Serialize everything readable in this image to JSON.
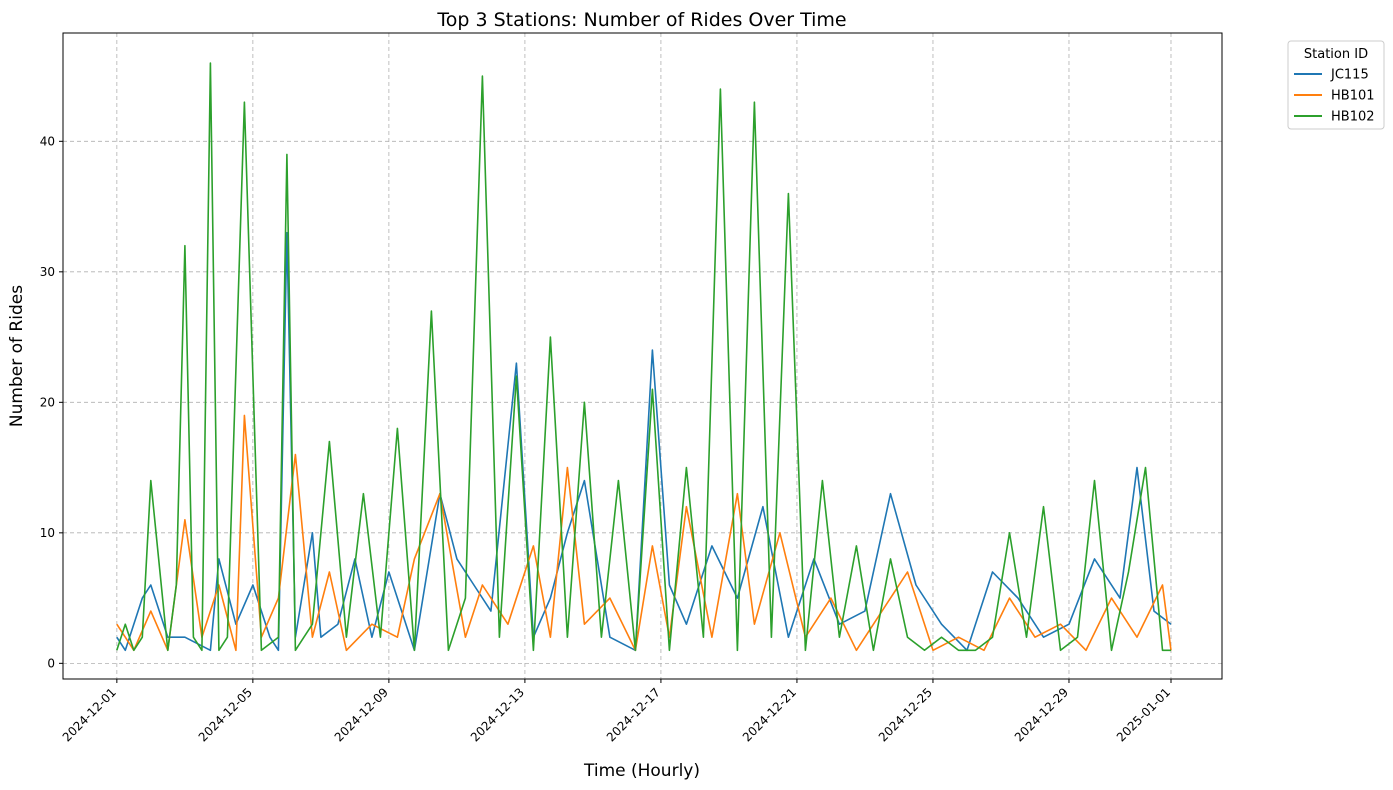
{
  "chart_data": {
    "type": "line",
    "title": "Top 3 Stations: Number of Rides Over Time",
    "xlabel": "Time (Hourly)",
    "ylabel": "Number of Rides",
    "xlim": [
      "2024-11-29 10:00",
      "2025-01-02 12:00"
    ],
    "ylim": [
      -1.2,
      48.3
    ],
    "x_ticks": [
      "2024-12-01",
      "2024-12-05",
      "2024-12-09",
      "2024-12-13",
      "2024-12-17",
      "2024-12-21",
      "2024-12-25",
      "2024-12-29",
      "2025-01-01"
    ],
    "y_ticks": [
      0,
      10,
      20,
      30,
      40
    ],
    "grid": true,
    "legend_title": "Station ID",
    "legend_location": "outside top-right",
    "series": [
      {
        "name": "JC115",
        "color": "#1f77b4",
        "x": [
          "2024-12-01 00:00",
          "2024-12-01 06:00",
          "2024-12-01 12:00",
          "2024-12-01 18:00",
          "2024-12-02 00:00",
          "2024-12-02 12:00",
          "2024-12-03 00:00",
          "2024-12-03 18:00",
          "2024-12-04 00:00",
          "2024-12-04 12:00",
          "2024-12-05 00:00",
          "2024-12-05 12:00",
          "2024-12-05 18:00",
          "2024-12-06 00:00",
          "2024-12-06 06:00",
          "2024-12-06 18:00",
          "2024-12-07 00:00",
          "2024-12-07 12:00",
          "2024-12-08 00:00",
          "2024-12-08 12:00",
          "2024-12-09 00:00",
          "2024-12-09 18:00",
          "2024-12-10 12:00",
          "2024-12-11 00:00",
          "2024-12-11 12:00",
          "2024-12-12 00:00",
          "2024-12-12 18:00",
          "2024-12-13 06:00",
          "2024-12-13 18:00",
          "2024-12-14 06:00",
          "2024-12-14 18:00",
          "2024-12-15 12:00",
          "2024-12-16 06:00",
          "2024-12-16 18:00",
          "2024-12-17 06:00",
          "2024-12-17 18:00",
          "2024-12-18 12:00",
          "2024-12-19 06:00",
          "2024-12-20 00:00",
          "2024-12-20 18:00",
          "2024-12-21 12:00",
          "2024-12-22 06:00",
          "2024-12-23 00:00",
          "2024-12-23 18:00",
          "2024-12-24 12:00",
          "2024-12-25 06:00",
          "2024-12-26 00:00",
          "2024-12-26 18:00",
          "2024-12-27 12:00",
          "2024-12-28 06:00",
          "2024-12-29 00:00",
          "2024-12-29 18:00",
          "2024-12-30 12:00",
          "2024-12-31 00:00",
          "2024-12-31 12:00",
          "2025-01-01 00:00"
        ],
        "values": [
          2,
          1,
          3,
          5,
          6,
          2,
          2,
          1,
          8,
          3,
          6,
          2,
          1,
          33,
          2,
          10,
          2,
          3,
          8,
          2,
          7,
          1,
          13,
          8,
          6,
          4,
          23,
          2,
          5,
          10,
          14,
          2,
          1,
          24,
          6,
          3,
          9,
          5,
          12,
          2,
          8,
          3,
          4,
          13,
          6,
          3,
          1,
          7,
          5,
          2,
          3,
          8,
          5,
          15,
          4,
          3
        ]
      },
      {
        "name": "HB101",
        "color": "#ff7f0e",
        "x": [
          "2024-12-01 00:00",
          "2024-12-01 06:00",
          "2024-12-01 12:00",
          "2024-12-02 00:00",
          "2024-12-02 12:00",
          "2024-12-03 00:00",
          "2024-12-03 12:00",
          "2024-12-04 00:00",
          "2024-12-04 12:00",
          "2024-12-04 18:00",
          "2024-12-05 06:00",
          "2024-12-05 18:00",
          "2024-12-06 06:00",
          "2024-12-06 18:00",
          "2024-12-07 06:00",
          "2024-12-07 18:00",
          "2024-12-08 12:00",
          "2024-12-09 06:00",
          "2024-12-09 18:00",
          "2024-12-10 12:00",
          "2024-12-11 06:00",
          "2024-12-11 18:00",
          "2024-12-12 12:00",
          "2024-12-13 06:00",
          "2024-12-13 18:00",
          "2024-12-14 06:00",
          "2024-12-14 18:00",
          "2024-12-15 12:00",
          "2024-12-16 06:00",
          "2024-12-16 18:00",
          "2024-12-17 06:00",
          "2024-12-17 18:00",
          "2024-12-18 12:00",
          "2024-12-19 06:00",
          "2024-12-19 18:00",
          "2024-12-20 12:00",
          "2024-12-21 06:00",
          "2024-12-22 00:00",
          "2024-12-22 18:00",
          "2024-12-23 12:00",
          "2024-12-24 06:00",
          "2024-12-25 00:00",
          "2024-12-25 18:00",
          "2024-12-26 12:00",
          "2024-12-27 06:00",
          "2024-12-28 00:00",
          "2024-12-28 18:00",
          "2024-12-29 12:00",
          "2024-12-30 06:00",
          "2024-12-31 00:00",
          "2024-12-31 18:00",
          "2025-01-01 00:00"
        ],
        "values": [
          3,
          2,
          1,
          4,
          1,
          11,
          2,
          6,
          1,
          19,
          2,
          5,
          16,
          2,
          7,
          1,
          3,
          2,
          8,
          13,
          2,
          6,
          3,
          9,
          2,
          15,
          3,
          5,
          1,
          9,
          2,
          12,
          2,
          13,
          3,
          10,
          2,
          5,
          1,
          4,
          7,
          1,
          2,
          1,
          5,
          2,
          3,
          1,
          5,
          2,
          6,
          1
        ]
      },
      {
        "name": "HB102",
        "color": "#2ca02c",
        "x": [
          "2024-12-01 00:00",
          "2024-12-01 06:00",
          "2024-12-01 12:00",
          "2024-12-01 18:00",
          "2024-12-02 00:00",
          "2024-12-02 12:00",
          "2024-12-02 18:00",
          "2024-12-03 00:00",
          "2024-12-03 06:00",
          "2024-12-03 12:00",
          "2024-12-03 18:00",
          "2024-12-04 00:00",
          "2024-12-04 06:00",
          "2024-12-04 18:00",
          "2024-12-05 06:00",
          "2024-12-05 18:00",
          "2024-12-06 00:00",
          "2024-12-06 06:00",
          "2024-12-06 12:00",
          "2024-12-06 18:00",
          "2024-12-07 06:00",
          "2024-12-07 18:00",
          "2024-12-08 06:00",
          "2024-12-08 18:00",
          "2024-12-09 06:00",
          "2024-12-09 18:00",
          "2024-12-10 06:00",
          "2024-12-10 18:00",
          "2024-12-11 06:00",
          "2024-12-11 18:00",
          "2024-12-12 06:00",
          "2024-12-12 18:00",
          "2024-12-13 06:00",
          "2024-12-13 18:00",
          "2024-12-14 06:00",
          "2024-12-14 18:00",
          "2024-12-15 06:00",
          "2024-12-15 18:00",
          "2024-12-16 06:00",
          "2024-12-16 18:00",
          "2024-12-17 06:00",
          "2024-12-17 18:00",
          "2024-12-18 06:00",
          "2024-12-18 18:00",
          "2024-12-19 06:00",
          "2024-12-19 18:00",
          "2024-12-20 06:00",
          "2024-12-20 18:00",
          "2024-12-21 06:00",
          "2024-12-21 18:00",
          "2024-12-22 06:00",
          "2024-12-22 18:00",
          "2024-12-23 06:00",
          "2024-12-23 18:00",
          "2024-12-24 06:00",
          "2024-12-24 18:00",
          "2024-12-25 06:00",
          "2024-12-25 18:00",
          "2024-12-26 06:00",
          "2024-12-26 18:00",
          "2024-12-27 06:00",
          "2024-12-27 18:00",
          "2024-12-28 06:00",
          "2024-12-28 18:00",
          "2024-12-29 06:00",
          "2024-12-29 18:00",
          "2024-12-30 06:00",
          "2024-12-30 18:00",
          "2024-12-31 06:00",
          "2024-12-31 18:00",
          "2025-01-01 00:00"
        ],
        "values": [
          1,
          3,
          1,
          2,
          14,
          1,
          6,
          32,
          2,
          1,
          46,
          1,
          2,
          43,
          1,
          2,
          39,
          1,
          2,
          3,
          17,
          2,
          13,
          2,
          18,
          1,
          27,
          1,
          5,
          45,
          2,
          22,
          1,
          25,
          2,
          20,
          2,
          14,
          1,
          21,
          1,
          15,
          2,
          44,
          1,
          43,
          2,
          36,
          1,
          14,
          2,
          9,
          1,
          8,
          2,
          1,
          2,
          1,
          1,
          2,
          10,
          2,
          12,
          1,
          2,
          14,
          1,
          7,
          15,
          1,
          1
        ]
      }
    ]
  }
}
